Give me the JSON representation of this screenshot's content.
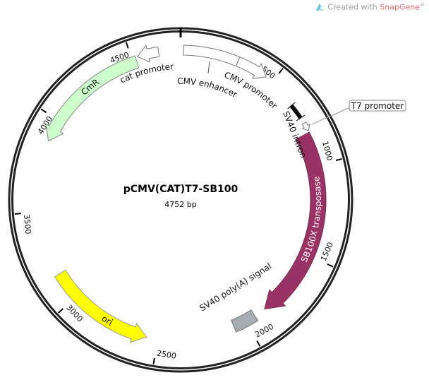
{
  "header": {
    "prefix": "Created with ",
    "brand": "SnapGene",
    "mark": "®",
    "icon": "snapgene-logo-icon"
  },
  "plasmid": {
    "name": "pCMV(CAT)T7-SB100",
    "length_label": "4752 bp",
    "length": 4752
  },
  "ticks": [
    500,
    1000,
    1500,
    2000,
    2500,
    3000,
    3500,
    4000,
    4500
  ],
  "tick_labels": [
    "500",
    "1000",
    "1500",
    "2000",
    "2500",
    "3000",
    "3500",
    "4000",
    "4500"
  ],
  "features": [
    {
      "name": "CMV enhancer",
      "start": 15,
      "end": 297,
      "direction": 0,
      "color": "#ffffff"
    },
    {
      "name": "CMV promoter",
      "start": 297,
      "end": 460,
      "direction": 1,
      "color": "#ffffff"
    },
    {
      "name": "SV40 intron",
      "start": 655,
      "end": 735,
      "direction": 0,
      "color": "#000000"
    },
    {
      "name": "T7 promoter",
      "start": 768,
      "end": 812,
      "direction": 1,
      "color": "#ffffff"
    },
    {
      "name": "SB100X transposase",
      "start": 822,
      "end": 1880,
      "direction": 1,
      "color": "#993366"
    },
    {
      "name": "SV40 poly(A) signal",
      "start": 1945,
      "end": 2075,
      "direction": 0,
      "color": "#a6acb3"
    },
    {
      "name": "ori",
      "start": 2560,
      "end": 3150,
      "direction": -1,
      "color": "#ffff00"
    },
    {
      "name": "CmR",
      "start": 3880,
      "end": 4520,
      "direction": -1,
      "color": "#ccffcc"
    },
    {
      "name": "cat promoter",
      "start": 4530,
      "end": 4640,
      "direction": -1,
      "color": "#ffffff"
    }
  ]
}
